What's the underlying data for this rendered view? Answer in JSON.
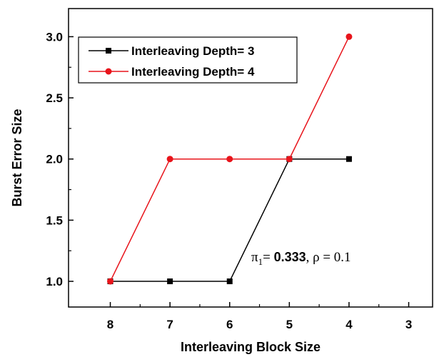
{
  "chart_data": {
    "type": "line",
    "xlabel": "Interleaving Block Size",
    "ylabel": "Burst Error Size",
    "xlim": [
      8.7,
      2.6
    ],
    "ylim": [
      0.79,
      3.23
    ],
    "x_ticks": [
      8,
      7,
      6,
      5,
      4,
      3
    ],
    "x_tick_labels": [
      "8",
      "7",
      "6",
      "5",
      "4",
      "3"
    ],
    "y_ticks": [
      1.0,
      1.5,
      2.0,
      2.5,
      3.0
    ],
    "y_tick_labels": [
      "1.0",
      "1.5",
      "2.0",
      "2.5",
      "3.0"
    ],
    "x_reversed": true,
    "grid": false,
    "legend_position": "top-left",
    "series": [
      {
        "name": "Interleaving Depth= 3",
        "color": "#000000",
        "marker": "square",
        "x": [
          8,
          7,
          6,
          5,
          4
        ],
        "y": [
          1.0,
          1.0,
          1.0,
          2.0,
          2.0
        ]
      },
      {
        "name": "Interleaving Depth= 4",
        "color": "#e8141b",
        "marker": "circle",
        "x": [
          8,
          7,
          6,
          5,
          4
        ],
        "y": [
          1.0,
          2.0,
          2.0,
          2.0,
          3.0
        ]
      }
    ],
    "annotation": {
      "symbol": "π",
      "subscript": "1",
      "equals": "= ",
      "pi_value": "0.333",
      "separator": ", ",
      "rho_text": "ρ = 0.1"
    }
  }
}
